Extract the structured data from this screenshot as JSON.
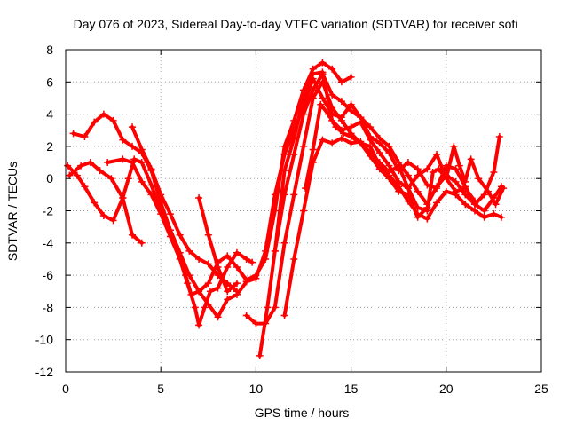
{
  "chart_data": {
    "type": "scatter",
    "title": "Day 076 of 2023, Sidereal Day-to-day VTEC variation (SDTVAR) for receiver sofi",
    "xlabel": "GPS time / hours",
    "ylabel": "SDTVAR / TECUs",
    "xlim": [
      0,
      25
    ],
    "ylim": [
      -12,
      8
    ],
    "xticks": [
      0,
      5,
      10,
      15,
      20,
      25
    ],
    "yticks": [
      -12,
      -10,
      -8,
      -6,
      -4,
      -2,
      0,
      2,
      4,
      6,
      8
    ],
    "grid": true,
    "marker": "plus",
    "color": "#ff0000",
    "series": [
      {
        "name": "track-1",
        "points": [
          [
            0.4,
            2.8
          ],
          [
            1.0,
            2.6
          ],
          [
            1.5,
            3.5
          ],
          [
            2.0,
            4.0
          ],
          [
            2.5,
            3.6
          ],
          [
            3.0,
            2.4
          ],
          [
            3.5,
            2.0
          ],
          [
            4.0,
            1.6
          ],
          [
            4.5,
            0.5
          ],
          [
            5.0,
            -1.5
          ],
          [
            5.5,
            -3.2
          ],
          [
            6.0,
            -4.6
          ],
          [
            6.5,
            -6.0
          ],
          [
            7.0,
            -7.0
          ],
          [
            7.5,
            -6.5
          ],
          [
            8.0,
            -5.2
          ],
          [
            8.5,
            -4.8
          ],
          [
            9.0,
            -5.5
          ],
          [
            9.5,
            -6.3
          ],
          [
            10.0,
            -6.0
          ],
          [
            10.5,
            -5.0
          ],
          [
            11.0,
            -2.0
          ],
          [
            11.5,
            2.0
          ],
          [
            12.0,
            3.6
          ],
          [
            12.5,
            5.5
          ],
          [
            13.0,
            6.8
          ],
          [
            13.5,
            7.2
          ],
          [
            14.0,
            6.8
          ],
          [
            14.5,
            6.0
          ],
          [
            15.0,
            6.3
          ]
        ]
      },
      {
        "name": "track-2",
        "points": [
          [
            0.1,
            0.8
          ],
          [
            0.6,
            0.2
          ],
          [
            1.0,
            -0.5
          ],
          [
            1.5,
            -1.5
          ],
          [
            2.0,
            -2.3
          ],
          [
            2.5,
            -2.6
          ],
          [
            3.0,
            -1.2
          ],
          [
            3.3,
            0.0
          ],
          [
            3.6,
            1.2
          ],
          [
            4.0,
            1.0
          ],
          [
            4.5,
            -0.4
          ],
          [
            5.0,
            -2.0
          ],
          [
            5.5,
            -3.2
          ],
          [
            6.0,
            -4.6
          ],
          [
            6.3,
            -6.0
          ],
          [
            6.6,
            -7.2
          ],
          [
            7.0,
            -7.0
          ],
          [
            7.5,
            -7.8
          ],
          [
            8.0,
            -8.6
          ],
          [
            8.5,
            -7.5
          ],
          [
            9.0,
            -7.2
          ],
          [
            9.5,
            -6.4
          ],
          [
            10.0,
            -6.2
          ],
          [
            10.5,
            -4.5
          ],
          [
            11.0,
            -1.0
          ],
          [
            11.5,
            1.5
          ],
          [
            12.0,
            3.0
          ],
          [
            12.5,
            4.5
          ],
          [
            13.0,
            6.2
          ],
          [
            13.5,
            5.0
          ],
          [
            14.0,
            4.0
          ],
          [
            14.5,
            3.8
          ],
          [
            15.0,
            4.6
          ],
          [
            15.5,
            3.8
          ],
          [
            16.0,
            2.6
          ],
          [
            16.5,
            2.2
          ],
          [
            17.0,
            1.6
          ],
          [
            17.5,
            0.5
          ],
          [
            18.0,
            1.0
          ],
          [
            18.5,
            0.6
          ],
          [
            19.0,
            -0.4
          ],
          [
            19.5,
            -0.6
          ],
          [
            20.0,
            0.8
          ],
          [
            20.5,
            0.6
          ],
          [
            21.0,
            -0.5
          ],
          [
            21.5,
            -1.6
          ],
          [
            22.0,
            -2.0
          ],
          [
            22.5,
            -1.2
          ],
          [
            22.9,
            -0.5
          ]
        ]
      },
      {
        "name": "track-3",
        "points": [
          [
            0.2,
            0.2
          ],
          [
            0.8,
            0.8
          ],
          [
            1.3,
            1.0
          ],
          [
            1.8,
            0.5
          ],
          [
            2.4,
            0.0
          ],
          [
            3.0,
            -1.2
          ],
          [
            3.5,
            -3.5
          ],
          [
            4.0,
            -4.0
          ]
        ]
      },
      {
        "name": "track-4",
        "points": [
          [
            2.2,
            1.0
          ],
          [
            3.0,
            1.2
          ],
          [
            3.5,
            1.0
          ],
          [
            4.0,
            -0.2
          ],
          [
            4.5,
            -1.0
          ],
          [
            5.0,
            -2.2
          ],
          [
            5.5,
            -3.6
          ],
          [
            6.0,
            -5.0
          ],
          [
            6.4,
            -6.5
          ],
          [
            6.8,
            -8.0
          ],
          [
            7.0,
            -9.1
          ],
          [
            7.3,
            -8.0
          ],
          [
            7.6,
            -7.0
          ],
          [
            8.0,
            -6.8
          ],
          [
            8.5,
            -5.5
          ],
          [
            9.0,
            -4.6
          ],
          [
            9.5,
            -5.0
          ],
          [
            9.8,
            -5.2
          ]
        ]
      },
      {
        "name": "track-5",
        "points": [
          [
            3.5,
            3.2
          ],
          [
            4.0,
            1.8
          ],
          [
            4.5,
            0.6
          ],
          [
            5.0,
            -1.0
          ],
          [
            5.5,
            -2.2
          ],
          [
            6.0,
            -3.5
          ],
          [
            6.5,
            -4.5
          ],
          [
            7.0,
            -5.0
          ],
          [
            7.5,
            -5.3
          ],
          [
            8.0,
            -6.0
          ],
          [
            8.5,
            -6.5
          ],
          [
            9.0,
            -7.0
          ]
        ]
      },
      {
        "name": "track-6",
        "points": [
          [
            7.0,
            -1.2
          ],
          [
            7.5,
            -3.5
          ],
          [
            8.0,
            -5.5
          ],
          [
            8.5,
            -7.0
          ],
          [
            9.0,
            -6.5
          ]
        ]
      },
      {
        "name": "track-7",
        "points": [
          [
            9.5,
            -8.5
          ],
          [
            10.0,
            -9.0
          ],
          [
            10.5,
            -9.0
          ],
          [
            11.0,
            -8.0
          ],
          [
            11.5,
            -4.0
          ],
          [
            12.0,
            -1.0
          ],
          [
            12.5,
            2.0
          ],
          [
            13.0,
            5.0
          ],
          [
            13.5,
            6.0
          ],
          [
            14.0,
            4.4
          ],
          [
            14.5,
            3.6
          ],
          [
            15.0,
            2.8
          ],
          [
            15.5,
            2.2
          ],
          [
            16.0,
            2.0
          ],
          [
            16.5,
            0.8
          ],
          [
            17.0,
            0.2
          ],
          [
            17.5,
            -0.5
          ],
          [
            18.0,
            -1.4
          ],
          [
            18.5,
            -2.2
          ],
          [
            19.0,
            -2.5
          ],
          [
            19.5,
            -1.5
          ],
          [
            20.0,
            -0.8
          ],
          [
            20.5,
            -1.0
          ],
          [
            21.0,
            -1.6
          ],
          [
            21.5,
            -2.0
          ],
          [
            22.0,
            -2.4
          ],
          [
            22.5,
            -2.2
          ],
          [
            22.9,
            -2.4
          ]
        ]
      },
      {
        "name": "track-8",
        "points": [
          [
            10.2,
            -11.0
          ],
          [
            10.6,
            -8.0
          ],
          [
            11.0,
            -4.5
          ],
          [
            11.5,
            -1.0
          ],
          [
            12.0,
            1.5
          ],
          [
            12.5,
            4.0
          ],
          [
            13.0,
            5.5
          ],
          [
            13.5,
            6.5
          ],
          [
            14.0,
            5.2
          ],
          [
            14.5,
            4.8
          ],
          [
            15.0,
            4.2
          ],
          [
            15.5,
            3.8
          ],
          [
            16.0,
            3.2
          ],
          [
            16.5,
            2.5
          ],
          [
            17.0,
            2.0
          ],
          [
            17.5,
            1.0
          ],
          [
            18.0,
            0.2
          ],
          [
            18.5,
            -0.8
          ],
          [
            19.0,
            -1.6
          ],
          [
            19.5,
            -0.5
          ],
          [
            20.0,
            0.2
          ],
          [
            20.5,
            -0.2
          ],
          [
            21.0,
            -1.0
          ],
          [
            21.5,
            -1.6
          ],
          [
            22.0,
            -1.0
          ],
          [
            22.5,
            0.4
          ],
          [
            22.8,
            2.6
          ]
        ]
      },
      {
        "name": "track-9",
        "points": [
          [
            11.5,
            -8.5
          ],
          [
            12.0,
            -5.0
          ],
          [
            12.5,
            -2.0
          ],
          [
            13.0,
            1.0
          ],
          [
            13.5,
            2.4
          ],
          [
            14.0,
            2.2
          ],
          [
            14.5,
            2.5
          ],
          [
            15.0,
            2.2
          ],
          [
            15.5,
            2.3
          ],
          [
            16.0,
            1.6
          ],
          [
            16.5,
            1.0
          ],
          [
            17.0,
            0.4
          ],
          [
            17.5,
            0.8
          ],
          [
            18.0,
            -0.6
          ],
          [
            18.5,
            -1.8
          ],
          [
            19.0,
            -2.0
          ],
          [
            19.3,
            0.4
          ],
          [
            19.6,
            0.6
          ],
          [
            20.0,
            0.0
          ],
          [
            20.4,
            2.0
          ],
          [
            20.7,
            0.8
          ],
          [
            21.0,
            -0.2
          ],
          [
            21.3,
            1.2
          ],
          [
            21.7,
            0.0
          ],
          [
            22.2,
            -0.8
          ],
          [
            22.6,
            -1.6
          ],
          [
            23.0,
            -0.6
          ]
        ]
      },
      {
        "name": "track-10",
        "points": [
          [
            11.0,
            -4.5
          ],
          [
            11.5,
            0.5
          ],
          [
            12.0,
            2.5
          ],
          [
            12.5,
            5.0
          ],
          [
            13.0,
            6.5
          ],
          [
            13.5,
            6.6
          ],
          [
            14.0,
            3.6
          ],
          [
            14.5,
            3.0
          ],
          [
            15.0,
            3.2
          ],
          [
            15.5,
            3.5
          ],
          [
            16.0,
            2.4
          ],
          [
            16.5,
            1.6
          ],
          [
            17.0,
            0.8
          ],
          [
            17.5,
            -0.2
          ],
          [
            18.0,
            -0.6
          ],
          [
            18.5,
            0.2
          ],
          [
            19.0,
            0.6
          ],
          [
            19.5,
            1.5
          ],
          [
            20.0,
            0.0
          ],
          [
            20.5,
            -0.8
          ],
          [
            21.0,
            -0.6
          ],
          [
            21.5,
            -1.4
          ]
        ]
      },
      {
        "name": "track-11",
        "points": [
          [
            12.6,
            -0.6
          ],
          [
            13.0,
            1.8
          ],
          [
            13.4,
            4.6
          ],
          [
            13.8,
            4.0
          ],
          [
            14.2,
            3.2
          ],
          [
            14.6,
            2.8
          ],
          [
            15.0,
            2.6
          ],
          [
            15.5,
            2.2
          ],
          [
            16.0,
            1.4
          ],
          [
            16.5,
            0.6
          ],
          [
            17.0,
            0.0
          ],
          [
            17.5,
            -0.8
          ],
          [
            18.0,
            -1.0
          ],
          [
            18.5,
            -2.4
          ],
          [
            19.0,
            -1.8
          ]
        ]
      }
    ]
  }
}
